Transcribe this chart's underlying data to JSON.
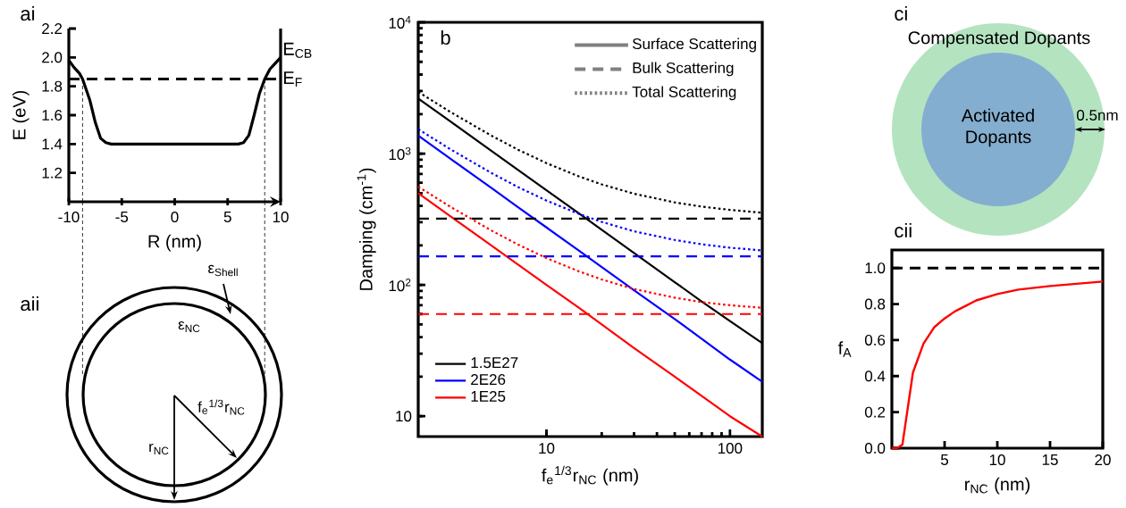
{
  "chart_data": [
    {
      "type": "line",
      "title": "ai",
      "xlabel": "R (nm)",
      "ylabel": "E (eV)",
      "x": [
        -10,
        -9.5,
        -9,
        -8.7,
        -8,
        -7.5,
        -7,
        -6.5,
        -6,
        0,
        6,
        6.5,
        7,
        7.5,
        8,
        8.5,
        9,
        9.5,
        10
      ],
      "values": [
        1.98,
        1.93,
        1.89,
        1.85,
        1.7,
        1.55,
        1.44,
        1.41,
        1.4,
        1.4,
        1.4,
        1.41,
        1.46,
        1.6,
        1.75,
        1.85,
        1.92,
        1.96,
        2.0
      ],
      "color": "#000000",
      "xlim": [
        -10,
        10
      ],
      "ylim": [
        1.0,
        2.2
      ],
      "xticks": [
        -10,
        -5,
        0,
        5,
        10
      ],
      "yticks": [
        1.2,
        1.4,
        1.6,
        1.8,
        {
          "value": 2.0,
          "label": "2.0"
        },
        2.2
      ],
      "ref_lines": [
        {
          "axis": "y",
          "value": 1.85,
          "label": "E$_{F}$",
          "line_style": "dashed",
          "color": "#000000"
        },
        {
          "axis": "x",
          "value": -8.7,
          "line_style": "dashed"
        },
        {
          "axis": "x",
          "value": 8.5,
          "line_style": "dashed"
        }
      ],
      "annotations": [
        {
          "text": "E$_{CB}$",
          "x": 10,
          "y": 2.0
        }
      ]
    },
    {
      "type": "other",
      "title": "aii",
      "annotations": [
        "ε$_{Shell}$",
        "ε$_{NC}$",
        "f$_{e}$$^{1/3}$r$_{NC}$",
        "r$_{NC}$"
      ]
    },
    {
      "type": "line",
      "title": "b",
      "xlabel": "f$_{e}$$^{1/3}$r$_{NC}$ (nm)",
      "ylabel": "Damping (cm$^{-1}$)",
      "log": "xy",
      "x": [
        2,
        3,
        5,
        7,
        10,
        15,
        20,
        30,
        50,
        70,
        100,
        150
      ],
      "xlim": [
        2,
        150
      ],
      "ylim": [
        7,
        10000
      ],
      "xticks": [
        10,
        100
      ],
      "yticks": [
        10,
        {
          "value": 100,
          "label": "10$^{2}$"
        },
        {
          "value": 1000,
          "label": "10$^{3}$"
        },
        {
          "value": 10000,
          "label": "10$^{4}$"
        }
      ],
      "legend": "bottom left",
      "annotations": [
        "Surface Scattering",
        "Bulk Scattering",
        "Total Scattering"
      ],
      "series": [
        {
          "name": "1.5E27",
          "color": "#000000",
          "values": [
            2630,
            1753,
            1052,
            751,
            526,
            351,
            263,
            175,
            105,
            75,
            53,
            36
          ]
        },
        {
          "name": "2E26",
          "color": "#0000ff",
          "values": [
            1370,
            913,
            548,
            391,
            274,
            183,
            137,
            91,
            55,
            39,
            27,
            18.3
          ]
        },
        {
          "name": "1E25",
          "color": "#ff0000",
          "values": [
            500,
            333,
            200,
            143,
            100,
            67,
            50,
            33,
            20,
            14.3,
            10,
            7
          ]
        },
        {
          "color": "#000000",
          "line_style": "dashed",
          "values": [
            320,
            320,
            320,
            320,
            320,
            320,
            320,
            320,
            320,
            320,
            320,
            320
          ]
        },
        {
          "color": "#0000ff",
          "line_style": "dashed",
          "values": [
            165,
            165,
            165,
            165,
            165,
            165,
            165,
            165,
            165,
            165,
            165,
            165
          ]
        },
        {
          "color": "#ff0000",
          "line_style": "dashed",
          "values": [
            60,
            60,
            60,
            60,
            60,
            60,
            60,
            60,
            60,
            60,
            60,
            60
          ]
        },
        {
          "color": "#000000",
          "line_style": "dotted",
          "values": [
            2950,
            2073,
            1372,
            1071,
            846,
            671,
            583,
            495,
            425,
            395,
            373,
            355
          ]
        },
        {
          "color": "#0000ff",
          "line_style": "dotted",
          "values": [
            1535,
            1078,
            713,
            556,
            439,
            348,
            302,
            256,
            220,
            204,
            192,
            183
          ]
        },
        {
          "color": "#ff0000",
          "line_style": "dotted",
          "values": [
            560,
            393,
            260,
            203,
            160,
            127,
            110,
            93,
            80,
            74,
            70,
            67
          ]
        }
      ]
    },
    {
      "type": "other",
      "title": "ci",
      "annotations": [
        "Compensated Dopants",
        "Activated Dopants",
        "0.5nm"
      ]
    },
    {
      "type": "line",
      "title": "cii",
      "xlabel": "r$_{NC}$ (nm)",
      "ylabel": "f$_{A}$",
      "x": [
        0,
        0.5,
        1,
        1.5,
        2,
        3,
        4,
        5,
        6,
        7,
        8,
        10,
        12,
        15,
        20
      ],
      "values": [
        0,
        0,
        0.02,
        0.22,
        0.42,
        0.58,
        0.67,
        0.72,
        0.76,
        0.79,
        0.82,
        0.855,
        0.88,
        0.9,
        0.925
      ],
      "color": "#ff0000",
      "xlim": [
        0,
        20
      ],
      "ylim": [
        0,
        1.1
      ],
      "xticks": [
        5,
        10,
        15,
        20
      ],
      "yticks": [
        {
          "value": 0,
          "label": "0.0"
        },
        {
          "value": 0.2,
          "label": "0.2"
        },
        {
          "value": 0.4,
          "label": "0.4"
        },
        {
          "value": 0.6,
          "label": "0.6"
        },
        {
          "value": 0.8,
          "label": "0.8"
        },
        {
          "value": 1.0,
          "label": "1.0"
        }
      ],
      "ref_lines": [
        {
          "axis": "y",
          "value": 1.0,
          "line_style": "dashed",
          "color": "#000000"
        }
      ]
    }
  ]
}
